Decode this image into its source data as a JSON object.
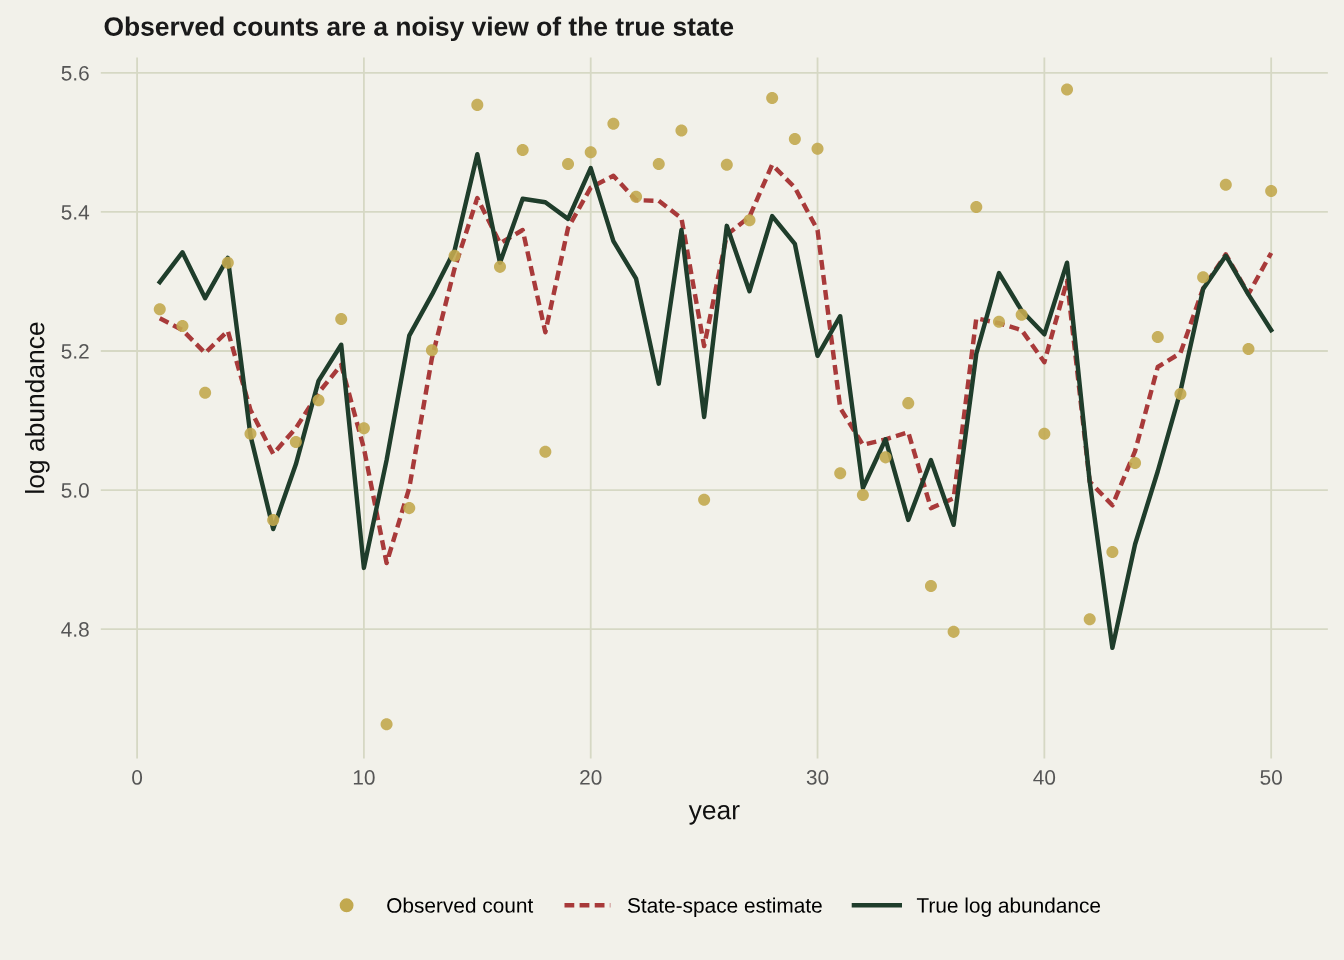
{
  "chart_data": {
    "type": "line",
    "title": "Observed counts are a noisy view of the true state",
    "xlabel": "year",
    "ylabel": "log abundance",
    "x": [
      1,
      2,
      3,
      4,
      5,
      6,
      7,
      8,
      9,
      10,
      11,
      12,
      13,
      14,
      15,
      16,
      17,
      18,
      19,
      20,
      21,
      22,
      23,
      24,
      25,
      26,
      27,
      28,
      29,
      30,
      31,
      32,
      33,
      34,
      35,
      36,
      37,
      38,
      39,
      40,
      41,
      42,
      43,
      44,
      45,
      46,
      47,
      48,
      49,
      50
    ],
    "series": [
      {
        "name": "Observed count",
        "type": "scatter",
        "marker": "circle",
        "color": "#c2a94f",
        "values": [
          5.26,
          5.236,
          5.14,
          5.327,
          5.081,
          4.957,
          5.069,
          5.129,
          5.246,
          5.089,
          4.663,
          4.974,
          5.201,
          5.337,
          5.554,
          5.321,
          5.489,
          5.055,
          5.469,
          5.486,
          5.527,
          5.422,
          5.469,
          5.517,
          4.986,
          5.468,
          5.388,
          5.564,
          5.505,
          5.491,
          5.024,
          4.993,
          5.047,
          5.125,
          4.862,
          4.796,
          5.407,
          5.242,
          5.252,
          5.081,
          5.576,
          4.814,
          4.911,
          5.039,
          5.22,
          5.138,
          5.306,
          5.439,
          5.203,
          5.43
        ]
      },
      {
        "name": "State-space estimate",
        "line_style": "dashed",
        "color": "#a83a3a",
        "values": [
          5.247,
          5.23,
          5.197,
          5.229,
          5.115,
          5.052,
          5.089,
          5.14,
          5.18,
          5.06,
          4.895,
          5.003,
          5.19,
          5.319,
          5.42,
          5.355,
          5.374,
          5.227,
          5.377,
          5.435,
          5.452,
          5.417,
          5.416,
          5.391,
          5.207,
          5.367,
          5.393,
          5.468,
          5.435,
          5.374,
          5.118,
          5.065,
          5.073,
          5.083,
          4.974,
          4.988,
          5.247,
          5.24,
          5.23,
          5.184,
          5.301,
          5.012,
          4.978,
          5.056,
          5.177,
          5.197,
          5.29,
          5.339,
          5.282,
          5.341
        ]
      },
      {
        "name": "True log abundance",
        "line_style": "solid",
        "color": "#1f3d2b",
        "values": [
          5.299,
          5.342,
          5.276,
          5.334,
          5.078,
          4.944,
          5.037,
          5.157,
          5.209,
          4.888,
          5.043,
          5.222,
          5.281,
          5.345,
          5.483,
          5.327,
          5.419,
          5.414,
          5.39,
          5.463,
          5.358,
          5.304,
          5.153,
          5.374,
          5.105,
          5.38,
          5.286,
          5.394,
          5.354,
          5.193,
          5.25,
          5.003,
          5.073,
          4.957,
          5.043,
          4.95,
          5.196,
          5.312,
          5.258,
          5.224,
          5.327,
          5.012,
          4.773,
          4.922,
          5.027,
          5.142,
          5.289,
          5.337,
          5.281,
          5.23
        ]
      }
    ],
    "xlim": [
      -1.6,
      52.5
    ],
    "xticks": [
      0,
      10,
      20,
      30,
      40,
      50
    ],
    "ylim": [
      4.614,
      5.622
    ],
    "yticks": [
      {
        "value": 4.8,
        "label": "4.8"
      },
      {
        "value": 5.0,
        "label": "5.0"
      },
      {
        "value": 5.2,
        "label": "5.2"
      },
      {
        "value": 5.4,
        "label": "5.4"
      },
      {
        "value": 5.6,
        "label": "5.6"
      }
    ],
    "grid": true,
    "legend": "bottom"
  }
}
